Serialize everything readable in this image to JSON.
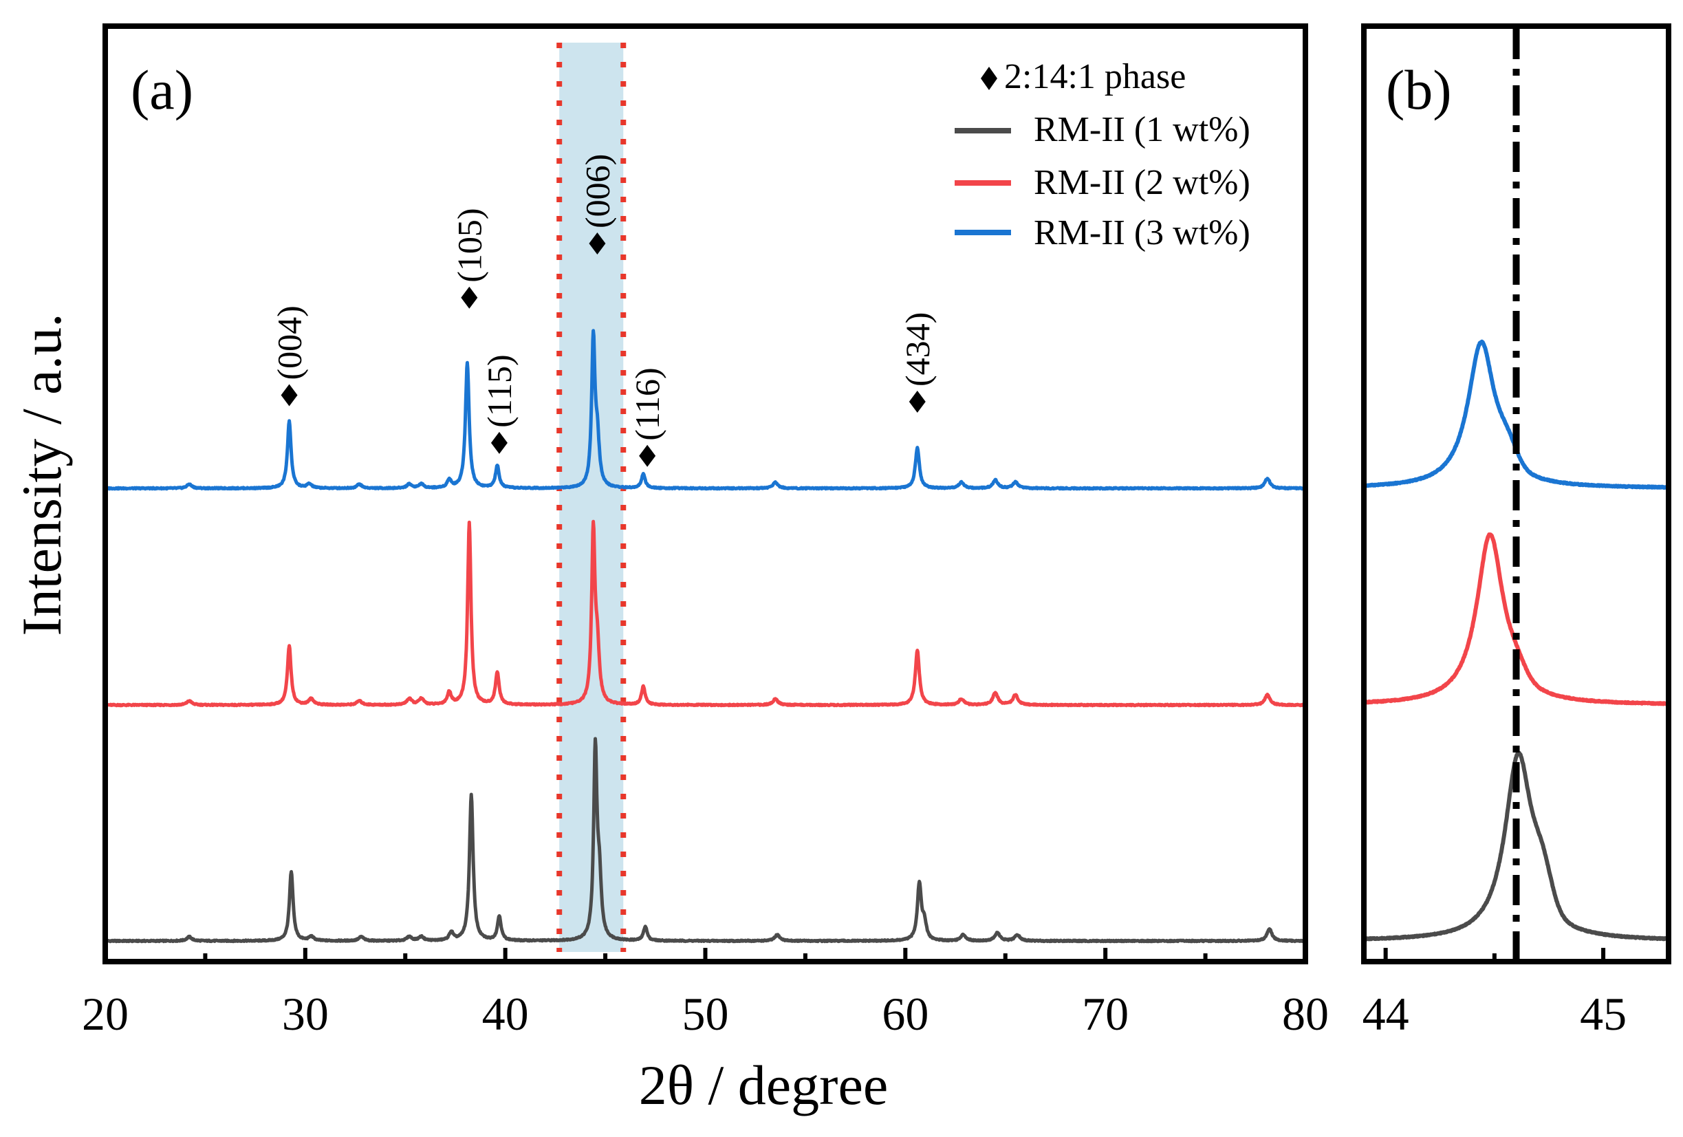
{
  "chart_data": [
    {
      "panel": "(a)",
      "type": "line",
      "xlabel": "2θ / degree",
      "ylabel": "Intensity / a.u.",
      "xlim": [
        20,
        80
      ],
      "xticks": [
        20,
        30,
        40,
        50,
        60,
        70,
        80
      ],
      "yticks": [],
      "highlight_region": {
        "from": 42.7,
        "to": 45.9,
        "color": "#cde4ee",
        "border": "#e8372b"
      },
      "legend": {
        "placement": "top-right",
        "entries": [
          {
            "label": "2:14:1 phase",
            "marker": "diamond",
            "color": "#000000"
          },
          {
            "label": "RM-II (1 wt%)",
            "marker": "line",
            "color": "#4b4b4b"
          },
          {
            "label": "RM-II (2 wt%)",
            "marker": "line",
            "color": "#f2454a"
          },
          {
            "label": "RM-II (3 wt%)",
            "marker": "line",
            "color": "#1a75d2"
          }
        ]
      },
      "series": [
        {
          "name": "RM-II (1 wt%)",
          "color": "#4b4b4b",
          "baseline": 0.0,
          "peaks": [
            {
              "pos": 24.2,
              "h": 0.02,
              "w": 0.15
            },
            {
              "pos": 29.3,
              "h": 0.34,
              "w": 0.11
            },
            {
              "pos": 30.3,
              "h": 0.02,
              "w": 0.15
            },
            {
              "pos": 32.8,
              "h": 0.02,
              "w": 0.15
            },
            {
              "pos": 35.2,
              "h": 0.02,
              "w": 0.15
            },
            {
              "pos": 35.8,
              "h": 0.02,
              "w": 0.15
            },
            {
              "pos": 37.3,
              "h": 0.04,
              "w": 0.12
            },
            {
              "pos": 38.3,
              "h": 0.72,
              "w": 0.11
            },
            {
              "pos": 39.7,
              "h": 0.12,
              "w": 0.11
            },
            {
              "pos": 44.5,
              "h": 0.92,
              "w": 0.1
            },
            {
              "pos": 44.7,
              "h": 0.28,
              "w": 0.12
            },
            {
              "pos": 47.0,
              "h": 0.07,
              "w": 0.11
            },
            {
              "pos": 53.6,
              "h": 0.03,
              "w": 0.15
            },
            {
              "pos": 60.7,
              "h": 0.28,
              "w": 0.12
            },
            {
              "pos": 60.95,
              "h": 0.08,
              "w": 0.12
            },
            {
              "pos": 62.9,
              "h": 0.03,
              "w": 0.15
            },
            {
              "pos": 64.6,
              "h": 0.04,
              "w": 0.15
            },
            {
              "pos": 65.6,
              "h": 0.03,
              "w": 0.15
            },
            {
              "pos": 78.2,
              "h": 0.06,
              "w": 0.15
            }
          ]
        },
        {
          "name": "RM-II (2 wt%)",
          "color": "#f2454a",
          "baseline": 1.0,
          "peaks": [
            {
              "pos": 24.2,
              "h": 0.02,
              "w": 0.15
            },
            {
              "pos": 29.2,
              "h": 0.29,
              "w": 0.11
            },
            {
              "pos": 30.3,
              "h": 0.03,
              "w": 0.15
            },
            {
              "pos": 32.7,
              "h": 0.02,
              "w": 0.15
            },
            {
              "pos": 35.2,
              "h": 0.03,
              "w": 0.15
            },
            {
              "pos": 35.8,
              "h": 0.03,
              "w": 0.15
            },
            {
              "pos": 37.2,
              "h": 0.06,
              "w": 0.12
            },
            {
              "pos": 38.2,
              "h": 0.9,
              "w": 0.1
            },
            {
              "pos": 39.6,
              "h": 0.16,
              "w": 0.11
            },
            {
              "pos": 44.4,
              "h": 0.84,
              "w": 0.1
            },
            {
              "pos": 44.6,
              "h": 0.25,
              "w": 0.12
            },
            {
              "pos": 46.9,
              "h": 0.09,
              "w": 0.11
            },
            {
              "pos": 53.5,
              "h": 0.03,
              "w": 0.15
            },
            {
              "pos": 60.6,
              "h": 0.27,
              "w": 0.12
            },
            {
              "pos": 62.8,
              "h": 0.03,
              "w": 0.15
            },
            {
              "pos": 64.5,
              "h": 0.06,
              "w": 0.15
            },
            {
              "pos": 65.5,
              "h": 0.05,
              "w": 0.15
            },
            {
              "pos": 78.1,
              "h": 0.05,
              "w": 0.15
            }
          ]
        },
        {
          "name": "RM-II (3 wt%)",
          "color": "#1a75d2",
          "baseline": 2.0,
          "peaks": [
            {
              "pos": 24.2,
              "h": 0.02,
              "w": 0.15
            },
            {
              "pos": 29.2,
              "h": 0.33,
              "w": 0.11
            },
            {
              "pos": 30.2,
              "h": 0.02,
              "w": 0.15
            },
            {
              "pos": 32.7,
              "h": 0.02,
              "w": 0.15
            },
            {
              "pos": 35.2,
              "h": 0.02,
              "w": 0.15
            },
            {
              "pos": 35.8,
              "h": 0.02,
              "w": 0.15
            },
            {
              "pos": 37.2,
              "h": 0.04,
              "w": 0.12
            },
            {
              "pos": 38.1,
              "h": 0.62,
              "w": 0.11
            },
            {
              "pos": 39.6,
              "h": 0.11,
              "w": 0.11
            },
            {
              "pos": 44.4,
              "h": 0.72,
              "w": 0.1
            },
            {
              "pos": 44.6,
              "h": 0.22,
              "w": 0.12
            },
            {
              "pos": 46.9,
              "h": 0.07,
              "w": 0.11
            },
            {
              "pos": 53.5,
              "h": 0.03,
              "w": 0.15
            },
            {
              "pos": 60.6,
              "h": 0.2,
              "w": 0.12
            },
            {
              "pos": 62.8,
              "h": 0.03,
              "w": 0.15
            },
            {
              "pos": 64.5,
              "h": 0.04,
              "w": 0.15
            },
            {
              "pos": 65.5,
              "h": 0.03,
              "w": 0.15
            },
            {
              "pos": 78.1,
              "h": 0.05,
              "w": 0.15
            }
          ]
        }
      ],
      "annotations": [
        {
          "label": "(004)",
          "x": 29.2,
          "y": 2.43
        },
        {
          "label": "(105)",
          "x": 38.2,
          "y": 2.88
        },
        {
          "label": "(115)",
          "x": 39.7,
          "y": 2.21
        },
        {
          "label": "(006)",
          "x": 44.6,
          "y": 3.13
        },
        {
          "label": "(116)",
          "x": 47.1,
          "y": 2.15
        },
        {
          "label": "(434)",
          "x": 60.6,
          "y": 2.4
        }
      ]
    },
    {
      "panel": "(b)",
      "type": "line",
      "xlabel": "",
      "ylabel": "",
      "xlim": [
        43.9,
        45.3
      ],
      "xticks": [
        44,
        45
      ],
      "yticks": [],
      "reference_line": {
        "x": 44.6,
        "style": "dash-dot",
        "color": "#000000"
      },
      "series": [
        {
          "name": "RM-II (1 wt%)",
          "color": "#4b4b4b",
          "baseline": 0.0,
          "peak": 44.61,
          "h": 0.92,
          "shoulder": 44.72,
          "shoulder_h": 0.48
        },
        {
          "name": "RM-II (2 wt%)",
          "color": "#f2454a",
          "baseline": 1.0,
          "peak": 44.48,
          "h": 0.84,
          "shoulder": 44.6,
          "shoulder_h": 0.3
        },
        {
          "name": "RM-II (3 wt%)",
          "color": "#1a75d2",
          "baseline": 2.0,
          "peak": 44.44,
          "h": 0.72,
          "shoulder": 44.56,
          "shoulder_h": 0.3
        }
      ]
    }
  ]
}
